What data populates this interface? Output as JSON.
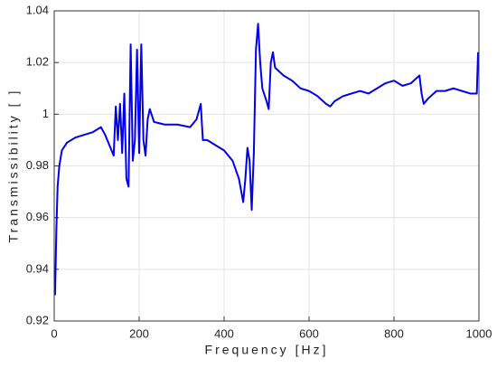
{
  "chart_data": {
    "type": "line",
    "x_label": "Frequency [Hz]",
    "y_label": "Transmissibility [ ]",
    "xlim": [
      0,
      1000
    ],
    "xticks": [
      0,
      200,
      400,
      600,
      800,
      1000
    ],
    "ylim": [
      0.92,
      1.04
    ],
    "yticks": [
      0.92,
      0.94,
      0.96,
      0.98,
      1,
      1.02,
      1.04
    ],
    "grid": true,
    "x": [
      2,
      5,
      8,
      12,
      18,
      30,
      50,
      70,
      90,
      110,
      120,
      130,
      140,
      145,
      150,
      155,
      160,
      165,
      170,
      175,
      180,
      185,
      190,
      195,
      200,
      205,
      210,
      215,
      220,
      225,
      235,
      260,
      290,
      320,
      335,
      345,
      350,
      360,
      380,
      400,
      420,
      435,
      445,
      450,
      455,
      460,
      465,
      470,
      475,
      480,
      485,
      490,
      500,
      505,
      510,
      515,
      520,
      540,
      560,
      580,
      600,
      620,
      640,
      650,
      660,
      680,
      700,
      720,
      740,
      760,
      780,
      800,
      820,
      840,
      860,
      865,
      870,
      880,
      900,
      920,
      940,
      960,
      980,
      995,
      998
    ],
    "series": [
      {
        "color": "#0000ee",
        "values": [
          0.93,
          0.955,
          0.972,
          0.98,
          0.986,
          0.989,
          0.991,
          0.992,
          0.993,
          0.995,
          0.992,
          0.988,
          0.984,
          1.003,
          0.99,
          1.004,
          0.985,
          1.008,
          0.975,
          0.972,
          1.027,
          0.982,
          0.99,
          1.025,
          0.985,
          1.027,
          0.99,
          0.984,
          0.998,
          1.002,
          0.997,
          0.996,
          0.996,
          0.995,
          0.998,
          1.004,
          0.99,
          0.99,
          0.988,
          0.986,
          0.982,
          0.975,
          0.966,
          0.975,
          0.987,
          0.982,
          0.963,
          0.985,
          1.025,
          1.035,
          1.02,
          1.01,
          1.005,
          1.002,
          1.02,
          1.024,
          1.018,
          1.015,
          1.013,
          1.01,
          1.009,
          1.007,
          1.004,
          1.003,
          1.005,
          1.007,
          1.008,
          1.009,
          1.008,
          1.01,
          1.012,
          1.013,
          1.011,
          1.012,
          1.015,
          1.008,
          1.004,
          1.006,
          1.009,
          1.009,
          1.01,
          1.009,
          1.008,
          1.008,
          1.024
        ]
      }
    ]
  }
}
